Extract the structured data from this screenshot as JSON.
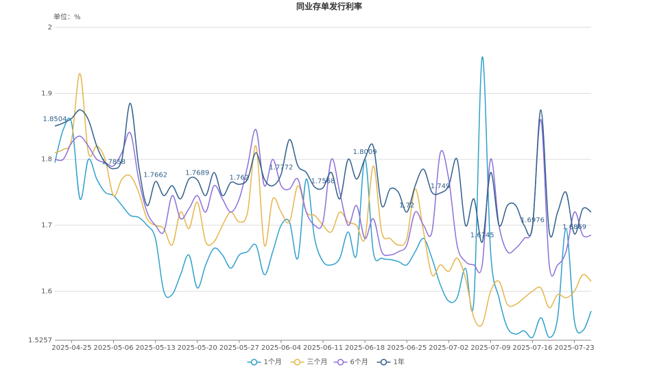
{
  "chart_data": {
    "type": "line",
    "title": "同业存单发行利率",
    "unit_label": "单位：%",
    "categories": [
      null,
      null,
      "2025-04-25",
      null,
      null,
      null,
      null,
      "2025-05-06",
      null,
      null,
      null,
      null,
      "2025-05-13",
      null,
      null,
      null,
      null,
      "2025-05-20",
      null,
      null,
      null,
      null,
      "2025-05-27",
      null,
      null,
      null,
      null,
      "2025-06-04",
      null,
      null,
      null,
      null,
      "2025-06-11",
      null,
      null,
      null,
      null,
      "2025-06-18",
      null,
      null,
      null,
      null,
      "2025-06-25",
      null,
      null,
      null,
      null,
      "2025-07-02",
      null,
      null,
      null,
      null,
      "2025-07-09",
      null,
      null,
      null,
      null,
      "2025-07-16",
      null,
      null,
      null,
      null,
      "2025-07-23",
      null,
      null
    ],
    "ylim": [
      1.5257,
      2
    ],
    "yticks": [
      1.5257,
      1.6,
      1.7,
      1.8,
      1.9,
      2
    ],
    "grid": true,
    "legend": "bottom",
    "series": [
      {
        "name": "1个月",
        "color": "#2e9fcb",
        "values": [
          1.795,
          1.845,
          1.855,
          1.74,
          1.8,
          1.77,
          1.75,
          1.745,
          1.73,
          1.715,
          1.712,
          1.7,
          1.68,
          1.6,
          1.595,
          1.625,
          1.655,
          1.605,
          1.64,
          1.665,
          1.655,
          1.635,
          1.655,
          1.66,
          1.67,
          1.625,
          1.66,
          1.7,
          1.705,
          1.65,
          1.77,
          1.68,
          1.645,
          1.64,
          1.65,
          1.69,
          1.655,
          1.8,
          1.66,
          1.65,
          1.648,
          1.645,
          1.64,
          1.66,
          1.68,
          1.65,
          1.61,
          1.585,
          1.59,
          1.635,
          1.585,
          1.955,
          1.66,
          1.59,
          1.545,
          1.535,
          1.54,
          1.53,
          1.56,
          1.53,
          1.56,
          1.695,
          1.555,
          1.54,
          1.57
        ]
      },
      {
        "name": "三个月",
        "color": "#e5b54a",
        "values": [
          1.81,
          1.815,
          1.83,
          1.93,
          1.81,
          1.82,
          1.8,
          1.745,
          1.77,
          1.775,
          1.75,
          1.71,
          1.7,
          1.695,
          1.67,
          1.72,
          1.695,
          1.735,
          1.675,
          1.675,
          1.7,
          1.72,
          1.705,
          1.72,
          1.82,
          1.67,
          1.74,
          1.72,
          1.705,
          1.76,
          1.72,
          1.715,
          1.7,
          1.69,
          1.72,
          1.705,
          1.7,
          1.68,
          1.79,
          1.69,
          1.68,
          1.67,
          1.68,
          1.755,
          1.69,
          1.625,
          1.64,
          1.63,
          1.65,
          1.62,
          1.56,
          1.55,
          1.6,
          1.615,
          1.58,
          1.58,
          1.59,
          1.6,
          1.605,
          1.575,
          1.595,
          1.59,
          1.6,
          1.625,
          1.615
        ]
      },
      {
        "name": "6个月",
        "color": "#8c6fd8",
        "values": [
          1.8,
          1.8,
          1.825,
          1.835,
          1.82,
          1.8,
          1.795,
          1.79,
          1.81,
          1.84,
          1.77,
          1.72,
          1.7,
          1.69,
          1.745,
          1.71,
          1.725,
          1.745,
          1.72,
          1.76,
          1.74,
          1.72,
          1.74,
          1.79,
          1.845,
          1.76,
          1.8,
          1.76,
          1.755,
          1.77,
          1.72,
          1.7,
          1.705,
          1.8,
          1.75,
          1.7,
          1.73,
          1.68,
          1.71,
          1.66,
          1.655,
          1.66,
          1.67,
          1.72,
          1.7,
          1.69,
          1.81,
          1.77,
          1.67,
          1.645,
          1.64,
          1.64,
          1.8,
          1.7,
          1.66,
          1.665,
          1.68,
          1.7,
          1.86,
          1.64,
          1.64,
          1.66,
          1.72,
          1.685,
          1.685
        ]
      },
      {
        "name": "1年",
        "color": "#2f5f8a",
        "values": [
          1.8504,
          1.855,
          1.862,
          1.875,
          1.86,
          1.82,
          1.795,
          1.7858,
          1.8,
          1.885,
          1.79,
          1.73,
          1.7662,
          1.745,
          1.76,
          1.74,
          1.77,
          1.7689,
          1.745,
          1.78,
          1.745,
          1.765,
          1.762,
          1.77,
          1.81,
          1.77,
          1.76,
          1.7772,
          1.83,
          1.79,
          1.78,
          1.758,
          1.7568,
          1.78,
          1.74,
          1.8,
          1.77,
          1.8009,
          1.82,
          1.73,
          1.755,
          1.75,
          1.72,
          1.76,
          1.785,
          1.75,
          1.749,
          1.76,
          1.8,
          1.7,
          1.74,
          1.6745,
          1.78,
          1.7,
          1.73,
          1.73,
          1.7,
          1.6976,
          1.875,
          1.69,
          1.72,
          1.75,
          1.6869,
          1.725,
          1.72
        ],
        "value_labels": [
          "1.8504",
          null,
          null,
          null,
          null,
          null,
          null,
          "1.7858",
          null,
          null,
          null,
          null,
          "1.7662",
          null,
          null,
          null,
          null,
          "1.7689",
          null,
          null,
          null,
          null,
          "1.762",
          null,
          null,
          null,
          null,
          "1.7772",
          null,
          null,
          null,
          null,
          "1.7568",
          null,
          null,
          null,
          null,
          "1.8009",
          null,
          null,
          null,
          null,
          "1.72",
          null,
          null,
          null,
          "1.749",
          null,
          null,
          null,
          null,
          "1.6745",
          null,
          null,
          null,
          null,
          null,
          "1.6976",
          null,
          null,
          null,
          null,
          "1.6869",
          null,
          null
        ]
      }
    ]
  }
}
